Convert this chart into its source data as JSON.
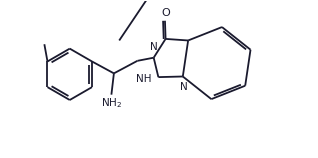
{
  "bg_color": "#ffffff",
  "bond_color": "#1a1a2e",
  "bond_lw": 1.3,
  "font_size": 7.5,
  "label_color": "#1a1a2e",
  "figsize": [
    3.18,
    1.58
  ],
  "dpi": 100,
  "xlim": [
    0,
    10
  ],
  "ylim": [
    0,
    5
  ]
}
